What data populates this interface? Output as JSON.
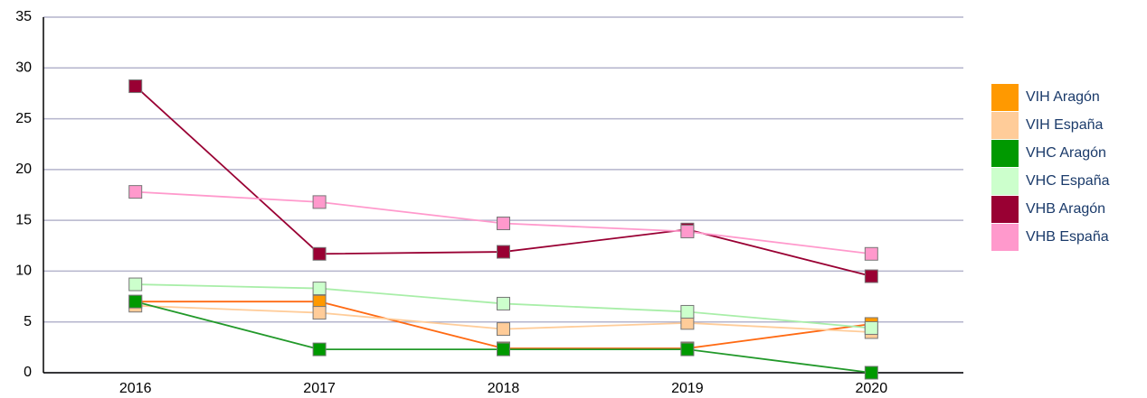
{
  "chart_data": {
    "type": "line",
    "categories": [
      "2016",
      "2017",
      "2018",
      "2019",
      "2020"
    ],
    "series": [
      {
        "name": "VIH Aragón",
        "color": "#ff9900",
        "line_color": "#ff6a13",
        "values": [
          7.0,
          7.0,
          2.4,
          2.4,
          4.8
        ]
      },
      {
        "name": "VIH España",
        "color": "#ffcc99",
        "line_color": "#ffcc99",
        "values": [
          6.6,
          5.9,
          4.3,
          4.9,
          4.0
        ]
      },
      {
        "name": "VHC Aragón",
        "color": "#009900",
        "line_color": "#22992a",
        "values": [
          7.0,
          2.3,
          2.3,
          2.3,
          0
        ]
      },
      {
        "name": "VHC España",
        "color": "#ccffcc",
        "line_color": "#a8eea8",
        "values": [
          8.7,
          8.3,
          6.8,
          6.0,
          4.4
        ]
      },
      {
        "name": "VHB Aragón",
        "color": "#990033",
        "line_color": "#990033",
        "values": [
          28.2,
          11.7,
          11.9,
          14.1,
          9.5
        ]
      },
      {
        "name": "VHB España",
        "color": "#ff99cc",
        "line_color": "#ff99cc",
        "values": [
          17.8,
          16.8,
          14.7,
          13.9,
          11.7
        ]
      }
    ],
    "ylim": [
      0,
      35
    ],
    "yticks": [
      0,
      5,
      10,
      15,
      20,
      25,
      30,
      35
    ],
    "grid": true,
    "legend": "right"
  }
}
